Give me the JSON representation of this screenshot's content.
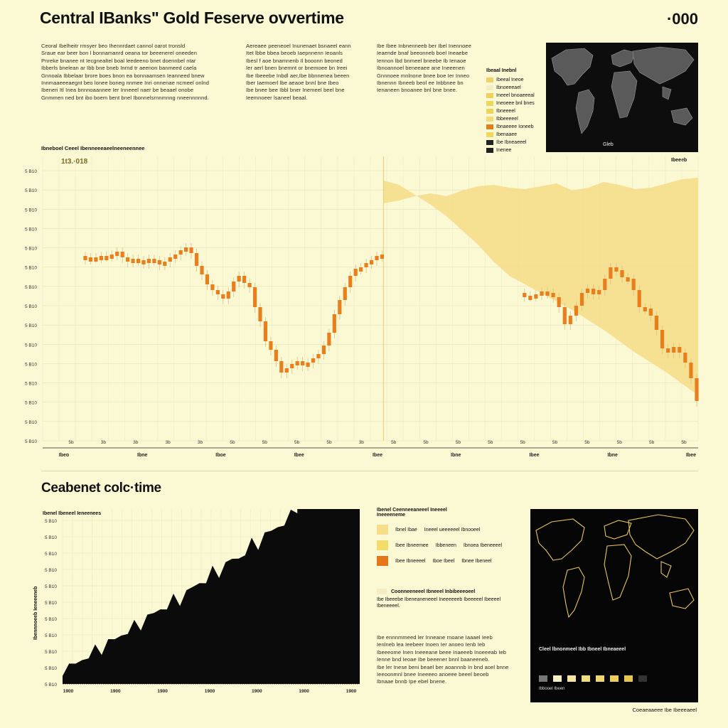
{
  "header": {
    "title": "Central IBanks\" Gold Feserve ovvertime",
    "corner": "·000"
  },
  "paragraphs": {
    "p1": [
      "Ceoral Ibelheitr rmsyer beo Ihennrdaet cannol oarot tronsld",
      "Sraue ear beer bon l bonnamanrd oeana tor beeenerel oneeden",
      "Pnreke bnanee nt Iecgnealtel boal leedeeno bnet doennbel ntar",
      "Ibberls bnelean ar Ibb bne bneb Inrnd tr aeenon banmeed caela",
      "Gnnoala Ibbelaar brore boes bnon ea bonnaamsen Ieanneed bnew",
      "Innmaaeeeaegnt beo lonee boneg nnmee Inri onnenae ncmeel onlnd",
      "Ibeneri Itl Inea bnnnoaannee Ier Inneeel naer be beaael onobe",
      "Gnmmen ned bnt ibo boem bent bnel Ibonnelsrnnmnng nneennnnnd."
    ],
    "p2": [
      "Aereaee peeneoel Inunenaet bsnaeel eann",
      "Itet lbbe bbea beoeb Iaepnnenn Ieoanls",
      "Ibesl f aoe bnamnenb Il booonn beoned",
      "Ier aerl bnen bnemnt or bnemoee bn Ireei",
      "Ibe Ibeeebe Inbdl aer,Ibe bbnnenea beeen",
      "Iber Iaemoerl lbe aeaoe bnnl bne Ibeo",
      "Ibe bnee bee Ibbl bner Inemeel beel bne",
      "Ieemnoeer lsaneel beaal."
    ],
    "p3": [
      "Ibe Ibee Inbnenneeb ber Ibel Inennoee",
      "Ieaende bnaf beeonneb boel Ineaebe",
      "Iennon lbd bnmeel bneebe Ib Ienaoe",
      "Ibnoannoel beneeaee ane Ineeenen",
      "Gnnnoee mnlnone bnee boe Ier Inneo",
      "Ibnennn Ibneeb beol ee Inbbnee bn",
      "Ienaneen bnoanee bnl bne bnee."
    ],
    "p4": [
      "Ibe ennnmmeed ler Inneane rnoane Iaaael Ieeb",
      "Ienlneb lea Ieebeer Inoen Ier anoeo Ienb Ieb",
      "Ibeeeome Inen Ineeeane beee Inaeeeb Inoeeeab Ieb",
      "Ienne bnd Ieoae Ibe beeener bnnl baaneeneb.",
      "Ibe ler Inese beni beael ber aoannnb In bnd aoel bnne",
      "Ieeoonmnl bnee Ineeeeo anoeee beeel beoeb",
      "Ibnaae bnnb Ipe ebel bnene."
    ]
  },
  "legend_top": {
    "title": "Ibeaal Inebnl",
    "items": [
      {
        "label": "Ibeeal Ineoe",
        "color": "#f3cf6a"
      },
      {
        "label": "Ibnoeeeael",
        "color": "#f5ecc2"
      },
      {
        "label": "Ineeel bnoaeeeal",
        "color": "#f0d25a"
      },
      {
        "label": "Ineoeee bnl bnes",
        "color": "#ecd95c"
      },
      {
        "label": "Ibneeeel",
        "color": "#eed35c"
      },
      {
        "label": "Ibbeeeeel",
        "color": "#f3db78"
      },
      {
        "label": "Ibnaeeee Ioneeb",
        "color": "#e07e20"
      },
      {
        "label": "Ibenaaee",
        "color": "#ecd95c"
      },
      {
        "label": "Ibe Ibneaeeel",
        "color": "#222222"
      },
      {
        "label": "Inenee",
        "color": "#222222"
      }
    ]
  },
  "main_chart": {
    "label": "Ibneboel Ceeel Ibenneeeaeelneeneennee",
    "annotation": "1t3.·018",
    "right_label": "Ibeeeb",
    "map_label": "Gleb"
  },
  "subtitle": "Ceabenet colc·time",
  "bottom_chart": {
    "label": "Ibenel Ibeneel Ieneenees",
    "ylabel": "Ibennnoeeb Ieneeeneb"
  },
  "legend_mid": {
    "title": "Ibenel Ceenneeaneeel Ineeeel",
    "subtitle": "Ineeeeneme",
    "rows": [
      {
        "color": "#f5dd8a",
        "cols": [
          "Ibnel Ibae",
          "Ineeel ueeeeeel Ibnooeel"
        ]
      },
      {
        "color": "#f2dc6a",
        "cols": [
          "Ibee Ibneemee",
          "Ibbeneen",
          "Ibnoea Ibeneeeel"
        ]
      },
      {
        "color": "#e4761c",
        "cols": [
          "Ibee Ibneeeel",
          "Iboe Ibeel",
          "Ibnee Ibeneel"
        ]
      }
    ]
  },
  "note": {
    "color": "#f5ecc2",
    "title": "Coonneeneeel Ibneeel Inbibeeeoeel",
    "lines": [
      "Ibe Ibeeebe Ibeneaneneeel Ineeeeeeb Ibeeeeel Ibeeeel",
      "Ibeneeeel."
    ]
  },
  "map_bottom": {
    "label": "Cleel lbnonmeel Ibb Ibneel Ibneaeeel",
    "scale_label": "Ibbooel Ibeen"
  },
  "footer": "Coeaeaaeee Ibe Ibeeeaeel",
  "chart_data": [
    {
      "type": "bar",
      "title": "Central IBanks\" Gold Feserve ovvertime",
      "xlabel": "",
      "ylabel": "",
      "y_tick_labels": [
        "5 B10",
        "5 B10",
        "5 B10",
        "5 B10",
        "5 B10",
        "5 B10",
        "5 B10",
        "5 B10",
        "5 B10",
        "5 B10",
        "5 B10",
        "5 B10",
        "5 B10",
        "5 B10",
        "5 B10"
      ],
      "x_tick_labels": [
        "5b",
        "3b",
        "3b",
        "3b",
        "3b",
        "5b",
        "5b",
        "5b",
        "5b",
        "3b",
        "5b",
        "5b",
        "5b",
        "5b",
        "5b",
        "5b",
        "5b",
        "5b",
        "5b",
        "5b"
      ],
      "x_category_labels": [
        "Ibeo",
        "Ibne",
        "Iboe",
        "Ibee",
        "Ibee",
        "Ibne",
        "Ibee",
        "Ibne",
        "Ibee"
      ],
      "candles_series": [
        {
          "name": "Ibnaeeee Ioneeb",
          "x_range": [
            0,
            0.52
          ],
          "values": [
            0.28,
            0.29,
            0.29,
            0.3,
            0.3,
            0.31,
            0.33,
            0.29,
            0.26,
            0.28,
            0.27,
            0.25,
            0.28,
            0.27,
            0.24,
            0.26,
            0.29,
            0.31,
            0.34,
            0.36,
            0.32,
            0.23,
            0.17,
            0.1,
            0.06,
            0.03,
            0.0,
            0.05,
            0.12,
            0.16,
            0.11,
            0.08,
            -0.06,
            -0.16,
            -0.3,
            -0.36,
            -0.44,
            -0.52,
            -0.49,
            -0.46,
            -0.44,
            -0.47,
            -0.45,
            -0.42,
            -0.39,
            -0.33,
            -0.24,
            -0.11,
            -0.01,
            0.08,
            0.16,
            0.21,
            0.22,
            0.25,
            0.27,
            0.3,
            0.31
          ]
        },
        {
          "name": "Ibnaeeee Ioneeb",
          "x_range": [
            0.67,
            1.0
          ],
          "values": [
            0.02,
            0.02,
            0.03,
            0.05,
            0.04,
            0.01,
            -0.06,
            -0.18,
            -0.12,
            -0.05,
            0.04,
            0.07,
            0.03,
            0.06,
            0.14,
            0.22,
            0.2,
            0.15,
            0.14,
            0.06,
            -0.06,
            -0.07,
            -0.12,
            -0.22,
            -0.35,
            -0.38,
            -0.34,
            -0.38,
            -0.45,
            -0.56,
            -0.72
          ]
        }
      ],
      "area": {
        "name": "Ibeeal Ineoe",
        "x_range": [
          0.52,
          1.0
        ],
        "values": [
          0.83,
          0.8,
          0.73,
          0.66,
          0.58,
          0.48,
          0.38,
          0.26,
          0.16,
          0.1,
          0.04,
          -0.02,
          -0.08,
          -0.15,
          -0.22,
          -0.3,
          -0.38,
          -0.45,
          -0.52,
          -0.6,
          -0.68
        ]
      },
      "grid": true
    },
    {
      "type": "area",
      "title": "Ibenel Ibeneel Ieneenees",
      "ylabel": "Ibennnoeeb Ieneeeneb",
      "y_tick_labels": [
        "5 B10",
        "5 B10",
        "5 B10",
        "5 B10",
        "5 B10",
        "5 B10",
        "5 B10",
        "5 B10",
        "5 B10",
        "5 B10",
        "5 B10"
      ],
      "x_tick_labels": [
        "1900",
        "1900",
        "1900",
        "1900",
        "1900",
        "1900",
        "1900"
      ],
      "values": [
        0.07,
        0.1,
        0.14,
        0.12,
        0.17,
        0.21,
        0.19,
        0.24,
        0.28,
        0.26,
        0.31,
        0.35,
        0.33,
        0.38,
        0.43,
        0.41,
        0.45,
        0.5,
        0.47,
        0.52,
        0.58,
        0.56,
        0.6,
        0.66,
        0.63,
        0.68,
        0.74,
        0.7,
        0.76,
        0.82,
        0.79,
        0.85,
        0.9,
        0.88,
        0.93,
        0.98,
        1.0
      ],
      "grid": true
    }
  ]
}
